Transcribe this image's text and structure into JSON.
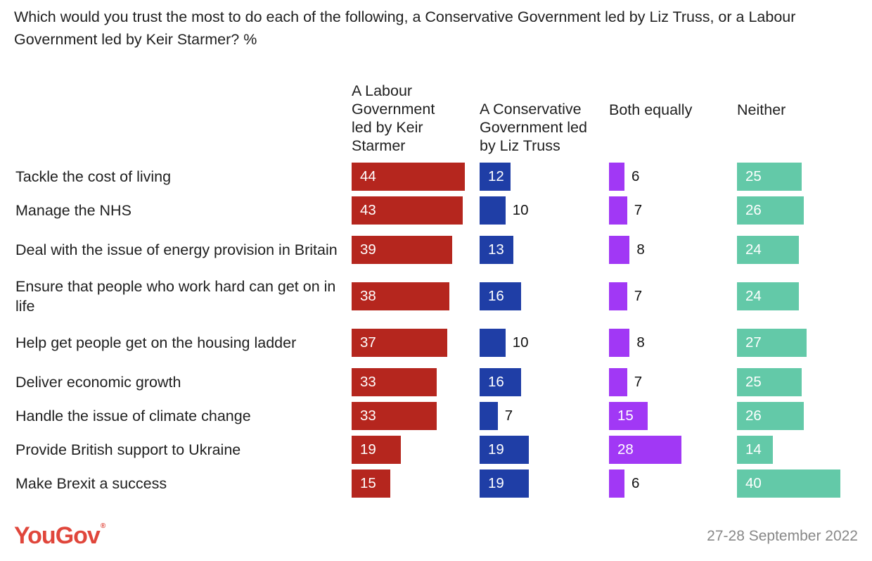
{
  "chart_data": {
    "type": "bar",
    "title": "Which would you trust the most to do each of the following, a Conservative Government led by Liz Truss, or a Labour Government led by Keir Starmer? %",
    "categories": [
      "Tackle the cost of living",
      "Manage the NHS",
      "Deal with the issue of energy provision in Britain",
      "Ensure that people who work hard can get on in life",
      "Help get people get on the housing ladder",
      "Deliver economic growth",
      "Handle the issue of climate change",
      "Provide British support to Ukraine",
      "Make Brexit a success"
    ],
    "series": [
      {
        "name": "A Labour Government led by Keir Starmer",
        "color": "#b5261e",
        "values": [
          44,
          43,
          39,
          38,
          37,
          33,
          33,
          19,
          15
        ]
      },
      {
        "name": "A Conservative Government led by Liz Truss",
        "color": "#1f3ea6",
        "values": [
          12,
          10,
          13,
          16,
          10,
          16,
          7,
          19,
          19
        ]
      },
      {
        "name": "Both equally",
        "color": "#a138f5",
        "values": [
          6,
          7,
          8,
          7,
          8,
          7,
          15,
          28,
          6
        ]
      },
      {
        "name": "Neither",
        "color": "#63c9a8",
        "values": [
          25,
          26,
          24,
          24,
          27,
          25,
          26,
          14,
          40
        ]
      }
    ],
    "unit": "%"
  },
  "footer": {
    "brand": "YouGov",
    "brand_mark": "®",
    "brand_color": "#e0463b",
    "date": "27-28 September 2022"
  }
}
